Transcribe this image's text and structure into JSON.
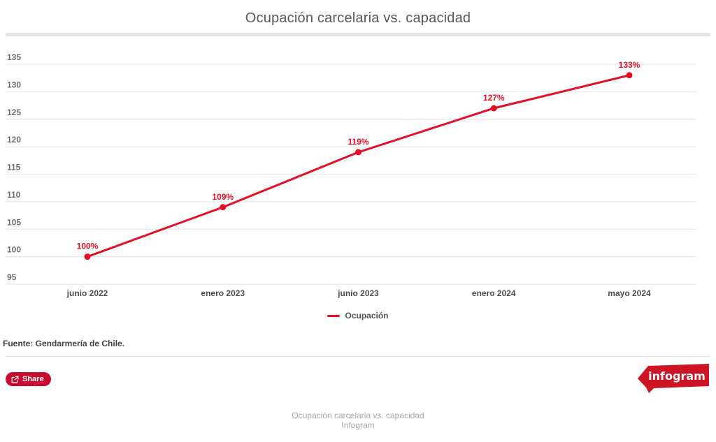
{
  "title": "Ocupación carcelaria vs. capacidad",
  "chart_data": {
    "type": "line",
    "title": "Ocupación carcelaria vs. capacidad",
    "categories": [
      "junio 2022",
      "enero 2023",
      "junio 2023",
      "enero 2024",
      "mayo 2024"
    ],
    "series": [
      {
        "name": "Ocupación",
        "values": [
          100,
          109,
          119,
          127,
          133
        ],
        "value_labels": [
          "100%",
          "109%",
          "119%",
          "127%",
          "133%"
        ],
        "color": "#e50f23"
      }
    ],
    "xlabel": "",
    "ylabel": "",
    "ylim": [
      95,
      135
    ],
    "ytick_step": 5,
    "yticks": [
      95,
      100,
      105,
      110,
      115,
      120,
      125,
      130,
      135
    ],
    "grid": true,
    "legend_position": "bottom"
  },
  "legend": {
    "items": [
      {
        "label": "Ocupación",
        "color": "#e50f23"
      }
    ]
  },
  "source_note": "Fuente: Gendarmería de Chile.",
  "share": {
    "label": "Share"
  },
  "logo": {
    "text": "infogram"
  },
  "footer": {
    "line1": "Ocupación carcelaria vs. capacidad",
    "line2": "Infogram"
  },
  "colors": {
    "line": "#e50f23",
    "grid": "#e7e7e7",
    "ytick_text": "#6d6d6d",
    "xtick_text": "#4d4d4d",
    "share_button": "#c60b2e",
    "logo_red": "#cc1425",
    "title_text": "#58585b"
  }
}
